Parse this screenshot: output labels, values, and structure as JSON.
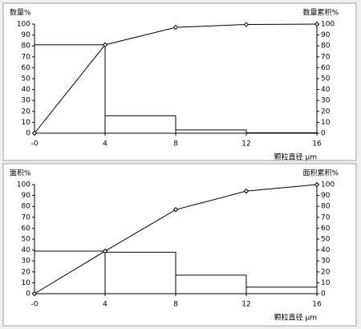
{
  "chart_data": [
    {
      "type": "histogram",
      "y_label": "数量%",
      "y2_label": "数量累积%",
      "x_label": "颗粒直径 μm",
      "bins": [
        0,
        4,
        8,
        12,
        16
      ],
      "values": [
        81,
        16,
        3,
        0.4
      ],
      "color": "#000000",
      "line": {
        "x": [
          0,
          4,
          8,
          12,
          16
        ],
        "values": [
          0,
          81,
          97,
          99.6,
          100
        ],
        "axis": "y2"
      },
      "xlim": [
        0,
        16
      ],
      "xticks": [
        {
          "value": 0,
          "label": "-0"
        },
        4,
        8,
        12,
        16
      ],
      "ylim": [
        0,
        100
      ],
      "yticks": [
        0,
        10,
        20,
        30,
        40,
        50,
        60,
        70,
        80,
        90,
        100
      ],
      "y2lim": [
        0,
        100
      ],
      "y2ticks": [
        0,
        10,
        20,
        30,
        40,
        50,
        60,
        70,
        80,
        90,
        100
      ]
    },
    {
      "type": "histogram",
      "y_label": "面积%",
      "y2_label": "面积累积%",
      "x_label": "颗粒直径 μm",
      "bins": [
        0,
        4,
        8,
        12,
        16
      ],
      "values": [
        39,
        38,
        17,
        6
      ],
      "color": "#000000",
      "line": {
        "x": [
          0,
          4,
          8,
          12,
          16
        ],
        "values": [
          0,
          39,
          77,
          94,
          100
        ],
        "axis": "y2"
      },
      "xlim": [
        0,
        16
      ],
      "xticks": [
        {
          "value": 0,
          "label": "-0"
        },
        4,
        8,
        12,
        16
      ],
      "ylim": [
        0,
        100
      ],
      "yticks": [
        0,
        10,
        20,
        30,
        40,
        50,
        60,
        70,
        80,
        90,
        100
      ],
      "y2lim": [
        0,
        100
      ],
      "y2ticks": [
        0,
        10,
        20,
        30,
        40,
        50,
        60,
        70,
        80,
        90,
        100
      ]
    }
  ]
}
